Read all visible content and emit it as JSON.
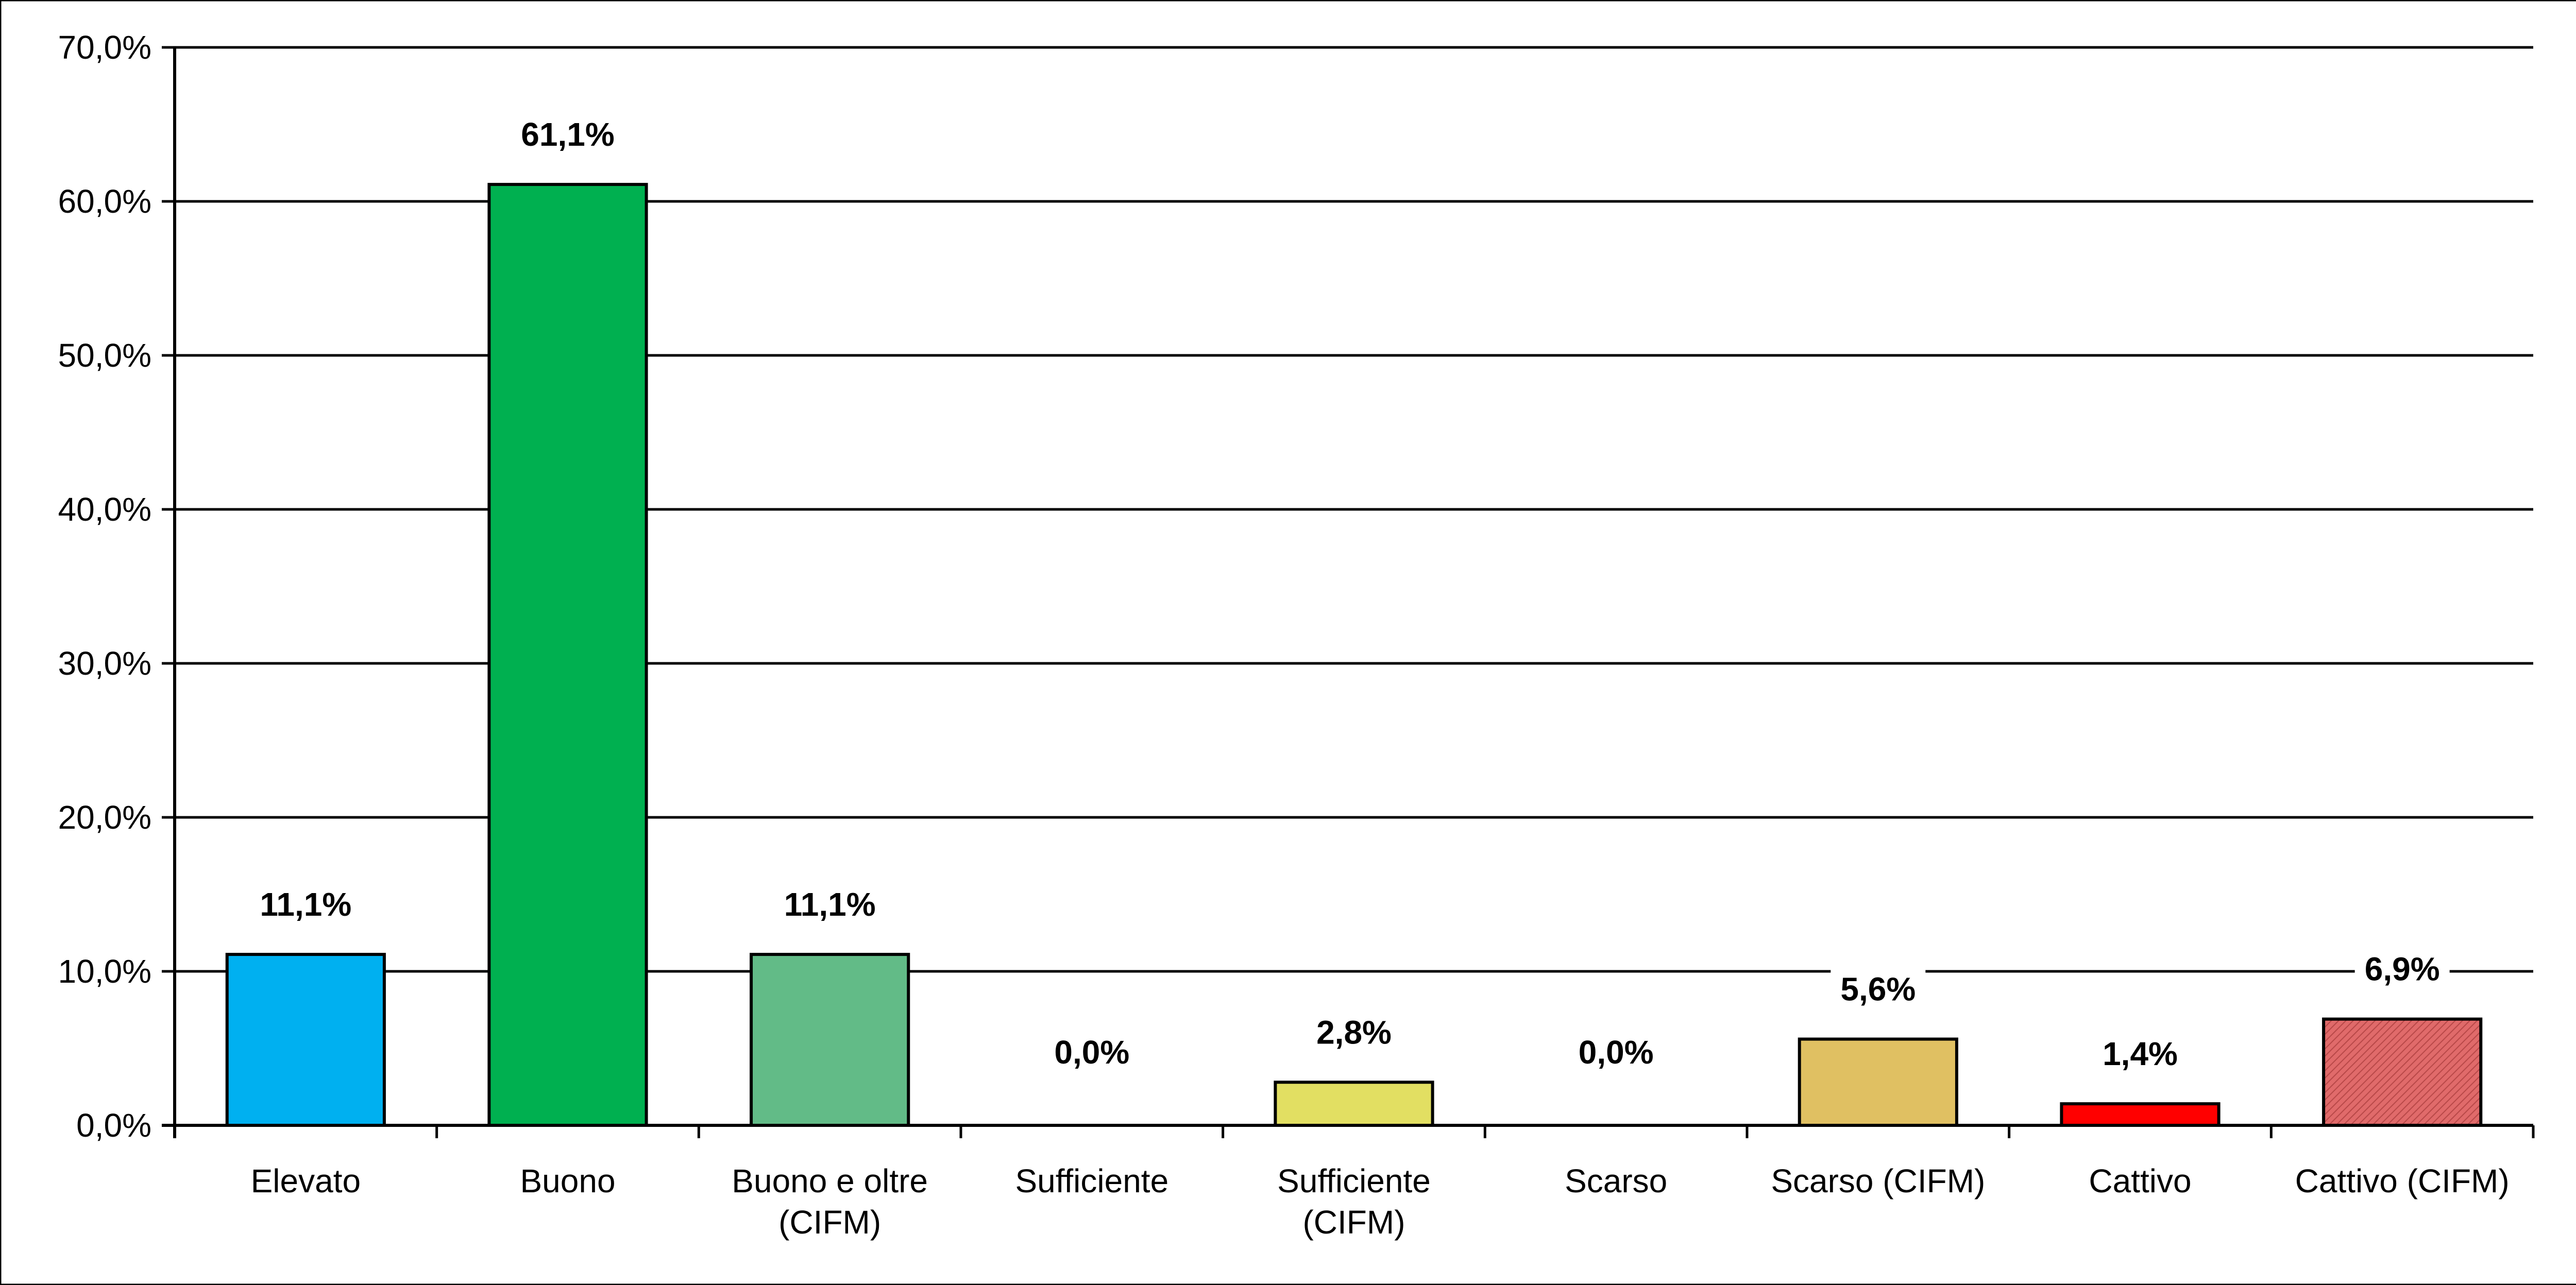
{
  "chart_data": {
    "type": "bar",
    "title": "",
    "xlabel": "",
    "ylabel": "",
    "ylim": [
      0,
      70
    ],
    "yticks": [
      0,
      10,
      20,
      30,
      40,
      50,
      60,
      70
    ],
    "ytick_labels": [
      "0,0%",
      "10,0%",
      "20,0%",
      "30,0%",
      "40,0%",
      "50,0%",
      "60,0%",
      "70,0%"
    ],
    "grid": true,
    "legend": "none",
    "categories": [
      [
        "Elevato"
      ],
      [
        "Buono"
      ],
      [
        "Buono e oltre",
        "(CIFM)"
      ],
      [
        "Sufficiente"
      ],
      [
        "Sufficiente",
        "(CIFM)"
      ],
      [
        "Scarso"
      ],
      [
        "Scarso (CIFM)"
      ],
      [
        "Cattivo"
      ],
      [
        "Cattivo (CIFM)"
      ]
    ],
    "values": [
      11.1,
      61.1,
      11.1,
      0.0,
      2.8,
      0.0,
      5.6,
      1.4,
      6.9
    ],
    "data_labels": [
      "11,1%",
      "61,1%",
      "11,1%",
      "0,0%",
      "2,8%",
      "0,0%",
      "5,6%",
      "1,4%",
      "6,9%"
    ],
    "colors": [
      "#00B0F0",
      "#00B050",
      "#62BB87",
      "#FFFFFF",
      "#E2DF62",
      "#FFFFFF",
      "#E0C062",
      "#FF0000",
      "#D86464"
    ],
    "hatched": [
      false,
      false,
      false,
      false,
      false,
      false,
      false,
      false,
      true
    ]
  }
}
